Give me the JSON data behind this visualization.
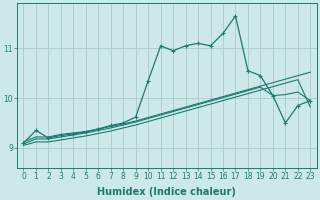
{
  "bg_color": "#cce8e8",
  "grid_color": "#aacccc",
  "line_color": "#1a7a6e",
  "xlabel": "Humidex (Indice chaleur)",
  "xlabel_fontsize": 7,
  "tick_fontsize": 5.5,
  "yticks": [
    9,
    10,
    11
  ],
  "ylim": [
    8.6,
    11.9
  ],
  "xlim": [
    -0.5,
    23.5
  ],
  "xticks": [
    0,
    1,
    2,
    3,
    4,
    5,
    6,
    7,
    8,
    9,
    10,
    11,
    12,
    13,
    14,
    15,
    16,
    17,
    18,
    19,
    20,
    21,
    22,
    23
  ],
  "series_main": [
    9.1,
    9.35,
    9.2,
    9.25,
    9.28,
    9.32,
    9.38,
    9.45,
    9.5,
    9.62,
    10.35,
    11.05,
    10.95,
    11.05,
    11.1,
    11.05,
    11.3,
    11.65,
    10.55,
    10.45,
    10.05,
    9.5,
    9.85,
    9.95
  ],
  "series_smooth1": [
    9.12,
    9.22,
    9.22,
    9.27,
    9.3,
    9.33,
    9.38,
    9.43,
    9.48,
    9.54,
    9.61,
    9.68,
    9.75,
    9.82,
    9.89,
    9.96,
    10.03,
    10.1,
    10.17,
    10.24,
    10.31,
    10.38,
    10.45,
    10.52
  ],
  "series_smooth2": [
    9.08,
    9.18,
    9.18,
    9.22,
    9.26,
    9.3,
    9.35,
    9.4,
    9.46,
    9.52,
    9.59,
    9.66,
    9.73,
    9.8,
    9.87,
    9.94,
    10.01,
    10.08,
    10.15,
    10.22,
    10.05,
    10.07,
    10.12,
    9.95
  ],
  "series_smooth3": [
    9.05,
    9.12,
    9.12,
    9.16,
    9.2,
    9.24,
    9.29,
    9.34,
    9.4,
    9.46,
    9.53,
    9.6,
    9.67,
    9.74,
    9.81,
    9.88,
    9.95,
    10.02,
    10.09,
    10.16,
    10.23,
    10.3,
    10.37,
    9.82
  ]
}
